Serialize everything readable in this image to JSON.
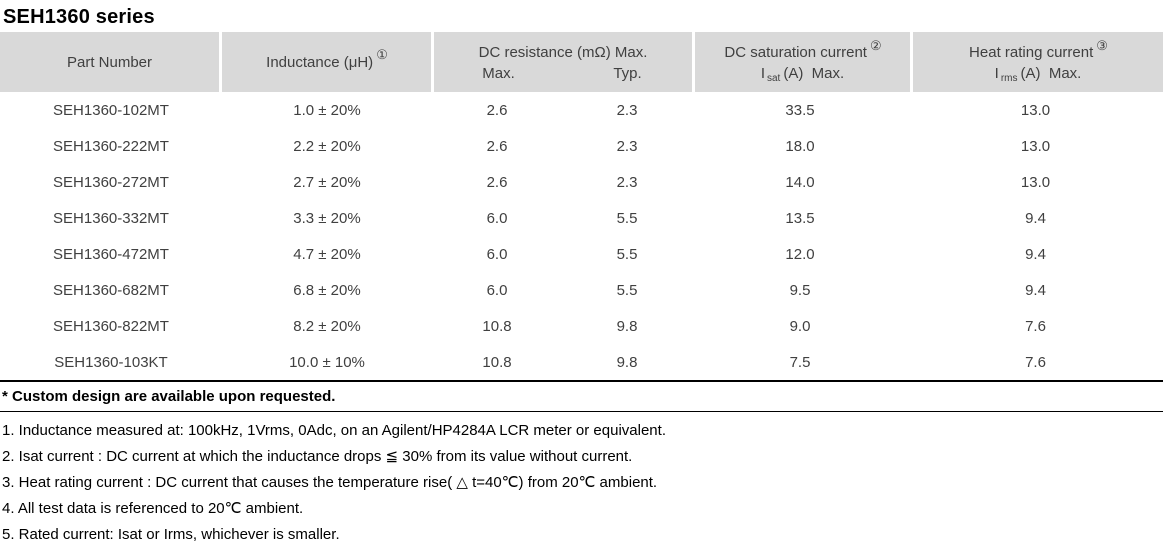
{
  "title": "SEH1360 series",
  "table": {
    "header": {
      "part_number": "Part Number",
      "inductance": "Inductance (μH)",
      "inductance_note": "①",
      "dc_resistance": "DC resistance (mΩ) Max.",
      "dc_resistance_max": "Max.",
      "dc_resistance_typ": "Typ.",
      "dc_saturation": "DC saturation current",
      "dc_saturation_note": "②",
      "isat_base": "I",
      "isat_sub": "sat",
      "isat_rest": "(A)  Max.",
      "heat_rating": "Heat rating current",
      "heat_rating_note": "③",
      "irms_base": "I",
      "irms_sub": "rms",
      "irms_rest": "(A)  Max."
    },
    "rows": [
      {
        "part": "SEH1360-102MT",
        "inductance": "1.0 ± 20%",
        "res_max": "2.6",
        "res_typ": "2.3",
        "isat": "33.5",
        "irms": "13.0"
      },
      {
        "part": "SEH1360-222MT",
        "inductance": "2.2 ± 20%",
        "res_max": "2.6",
        "res_typ": "2.3",
        "isat": "18.0",
        "irms": "13.0"
      },
      {
        "part": "SEH1360-272MT",
        "inductance": "2.7 ± 20%",
        "res_max": "2.6",
        "res_typ": "2.3",
        "isat": "14.0",
        "irms": "13.0"
      },
      {
        "part": "SEH1360-332MT",
        "inductance": "3.3 ± 20%",
        "res_max": "6.0",
        "res_typ": "5.5",
        "isat": "13.5",
        "irms": "9.4"
      },
      {
        "part": "SEH1360-472MT",
        "inductance": "4.7 ± 20%",
        "res_max": "6.0",
        "res_typ": "5.5",
        "isat": "12.0",
        "irms": "9.4"
      },
      {
        "part": "SEH1360-682MT",
        "inductance": "6.8 ± 20%",
        "res_max": "6.0",
        "res_typ": "5.5",
        "isat": "9.5",
        "irms": "9.4"
      },
      {
        "part": "SEH1360-822MT",
        "inductance": "8.2 ± 20%",
        "res_max": "10.8",
        "res_typ": "9.8",
        "isat": "9.0",
        "irms": "7.6"
      },
      {
        "part": "SEH1360-103KT",
        "inductance": "10.0 ± 10%",
        "res_max": "10.8",
        "res_typ": "9.8",
        "isat": "7.5",
        "irms": "7.6"
      }
    ]
  },
  "footer": {
    "custom_note": "* Custom design are available upon requested.",
    "notes": [
      "1. Inductance measured at: 100kHz, 1Vrms, 0Adc, on an Agilent/HP4284A LCR meter or equivalent.",
      "2. Isat current : DC current at which the inductance drops ≦ 30% from its value without current.",
      "3. Heat rating current : DC current that causes the temperature rise( △ t=40℃) from 20℃ ambient.",
      "4. All test data is referenced to 20℃ ambient.",
      "5. Rated current: Isat or Irms, whichever is smaller."
    ]
  },
  "colors": {
    "header_bg": "#d9d9d9",
    "table_text": "#404040",
    "note_text": "#000000",
    "border": "#000000"
  }
}
